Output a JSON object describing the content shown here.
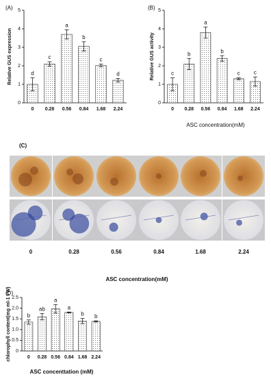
{
  "chart_data": [
    {
      "type": "bar",
      "panel_label": "(A)",
      "y_label": "Relative GUS expression",
      "categories": [
        "0",
        "0.28",
        "0.56",
        "0.84",
        "1.68",
        "2.24"
      ],
      "values": [
        1.0,
        2.1,
        3.7,
        3.05,
        2.02,
        1.22
      ],
      "errors": [
        0.35,
        0.12,
        0.25,
        0.25,
        0.07,
        0.1
      ],
      "significance": [
        "d",
        "c",
        "a",
        "b",
        "c",
        "d"
      ],
      "ylim": [
        0,
        5
      ],
      "yticks": [
        0,
        1,
        2,
        3,
        4,
        5
      ]
    },
    {
      "type": "bar",
      "panel_label": "(B)",
      "y_label": "Relative GUS activity",
      "x_label": "ASC concentration(mM)",
      "categories": [
        "0",
        "0.28",
        "0.56",
        "0.84",
        "1.68",
        "2.24"
      ],
      "values": [
        1.0,
        2.1,
        3.8,
        2.4,
        1.3,
        1.15
      ],
      "errors": [
        0.35,
        0.3,
        0.3,
        0.15,
        0.05,
        0.25
      ],
      "significance": [
        "c",
        "b",
        "a",
        "b",
        "c",
        "c"
      ],
      "ylim": [
        0,
        5
      ],
      "yticks": [
        0,
        1,
        2,
        3,
        4,
        5
      ]
    },
    {
      "type": "bar",
      "panel_label": "(D)",
      "y_label": "chlorophyll content(mg ml-1 FW)",
      "x_label": "ASC concenttation (mM)",
      "categories": [
        "0",
        "0.28",
        "0.56",
        "0.84",
        "1.68",
        "2.24"
      ],
      "values": [
        1.35,
        1.6,
        1.97,
        1.8,
        1.4,
        1.38
      ],
      "errors": [
        0.1,
        0.15,
        0.2,
        0.02,
        0.12,
        0.03
      ],
      "significance": [
        "b",
        "ab",
        "a",
        "a",
        "b",
        "b"
      ],
      "ylim": [
        0,
        2.5
      ],
      "yticks": [
        0,
        0.5,
        {
          "value": 1,
          "label": "1.0"
        },
        1.5,
        {
          "value": 2,
          "label": "2.0"
        },
        2.5
      ]
    }
  ],
  "panel_c": {
    "label": "(C)",
    "categories": [
      "0",
      "0.28",
      "0.56",
      "0.84",
      "1.68",
      "2.24"
    ],
    "x_label": "ASC concentration(mM)"
  }
}
